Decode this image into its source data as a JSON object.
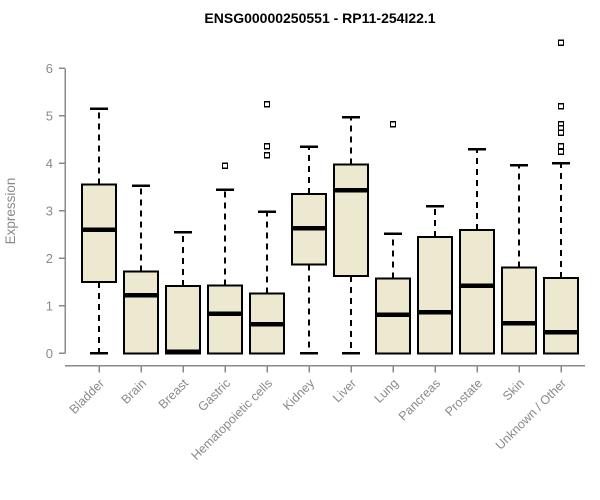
{
  "title": "ENSG00000250551 - RP11-254I22.1",
  "colors": {
    "background": "#FFFFFF",
    "box_fill": "#EDE8D0",
    "box_stroke": "#000000",
    "median": "#000000",
    "whisker": "#000000",
    "outlier_stroke": "#000000",
    "outlier_fill": "#FFFFFF",
    "axis": "#8A8A8A",
    "tick_label": "#8A8A8A",
    "axis_label": "#8A8A8A",
    "title": "#000000"
  },
  "chart_data": {
    "type": "boxplot",
    "title": "ENSG00000250551 - RP11-254I22.1",
    "ylabel": "Expression",
    "xlabel": "",
    "ylim": [
      0,
      6
    ],
    "y_ticks": [
      0,
      1,
      2,
      3,
      4,
      5,
      6
    ],
    "grid": false,
    "legend": false,
    "x_tick_rotation_deg": 45,
    "categories": [
      "Bladder",
      "Brain",
      "Breast",
      "Gastric",
      "Hematopoietic cells",
      "Kidney",
      "Liver",
      "Lung",
      "Pancreas",
      "Prostate",
      "Skin",
      "Unknown / Other"
    ],
    "series": [
      {
        "name": "Bladder",
        "whisker_low": 0,
        "q1": 1.5,
        "median": 2.6,
        "q3": 3.55,
        "whisker_high": 5.15,
        "outliers": []
      },
      {
        "name": "Brain",
        "whisker_low": 0,
        "q1": 0,
        "median": 1.22,
        "q3": 1.72,
        "whisker_high": 3.53,
        "outliers": []
      },
      {
        "name": "Breast",
        "whisker_low": 0,
        "q1": 0,
        "median": 0.03,
        "q3": 1.42,
        "whisker_high": 2.55,
        "outliers": []
      },
      {
        "name": "Gastric",
        "whisker_low": 0,
        "q1": 0,
        "median": 0.83,
        "q3": 1.43,
        "whisker_high": 3.44,
        "outliers": [
          3.95
        ]
      },
      {
        "name": "Hematopoietic cells",
        "whisker_low": 0,
        "q1": 0,
        "median": 0.61,
        "q3": 1.26,
        "whisker_high": 2.98,
        "outliers": [
          5.24,
          4.36,
          4.17
        ]
      },
      {
        "name": "Kidney",
        "whisker_low": 0,
        "q1": 1.87,
        "median": 2.63,
        "q3": 3.35,
        "whisker_high": 4.35,
        "outliers": []
      },
      {
        "name": "Liver",
        "whisker_low": 0,
        "q1": 1.63,
        "median": 3.43,
        "q3": 3.97,
        "whisker_high": 4.97,
        "outliers": []
      },
      {
        "name": "Lung",
        "whisker_low": 0,
        "q1": 0,
        "median": 0.81,
        "q3": 1.58,
        "whisker_high": 2.52,
        "outliers": [
          4.82
        ]
      },
      {
        "name": "Pancreas",
        "whisker_low": 0,
        "q1": 0,
        "median": 0.86,
        "q3": 2.45,
        "whisker_high": 3.1,
        "outliers": []
      },
      {
        "name": "Prostate",
        "whisker_low": 0,
        "q1": 0,
        "median": 1.42,
        "q3": 2.6,
        "whisker_high": 4.3,
        "outliers": []
      },
      {
        "name": "Skin",
        "whisker_low": 0,
        "q1": 0,
        "median": 0.63,
        "q3": 1.81,
        "whisker_high": 3.96,
        "outliers": []
      },
      {
        "name": "Unknown / Other",
        "whisker_low": 0,
        "q1": 0,
        "median": 0.44,
        "q3": 1.59,
        "whisker_high": 4.0,
        "outliers": [
          6.54,
          5.2,
          4.82,
          4.74,
          4.64,
          4.36,
          4.24
        ]
      }
    ]
  }
}
